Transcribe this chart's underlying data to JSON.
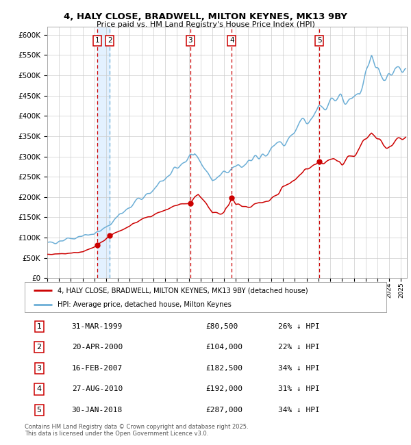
{
  "title": "4, HALY CLOSE, BRADWELL, MILTON KEYNES, MK13 9BY",
  "subtitle": "Price paid vs. HM Land Registry's House Price Index (HPI)",
  "hpi_label": "HPI: Average price, detached house, Milton Keynes",
  "property_label": "4, HALY CLOSE, BRADWELL, MILTON KEYNES, MK13 9BY (detached house)",
  "footer": "Contains HM Land Registry data © Crown copyright and database right 2025.\nThis data is licensed under the Open Government Licence v3.0.",
  "transactions": [
    {
      "num": 1,
      "date": "31-MAR-1999",
      "price": 80500,
      "pct": "26%",
      "dir": "↓"
    },
    {
      "num": 2,
      "date": "20-APR-2000",
      "price": 104000,
      "pct": "22%",
      "dir": "↓"
    },
    {
      "num": 3,
      "date": "16-FEB-2007",
      "price": 182500,
      "pct": "34%",
      "dir": "↓"
    },
    {
      "num": 4,
      "date": "27-AUG-2010",
      "price": 192000,
      "pct": "31%",
      "dir": "↓"
    },
    {
      "num": 5,
      "date": "30-JAN-2018",
      "price": 287000,
      "pct": "34%",
      "dir": "↓"
    }
  ],
  "transaction_dates_decimal": [
    1999.25,
    2000.31,
    2007.12,
    2010.65,
    2018.08
  ],
  "property_color": "#cc0000",
  "hpi_color": "#6baed6",
  "vline_red_color": "#cc0000",
  "vline_blue_color": "#6baed6",
  "shade_color": "#ddeeff",
  "ylim": [
    0,
    620000
  ],
  "xlim_start": 1995.0,
  "xlim_end": 2025.5,
  "background_color": "#ffffff",
  "grid_color": "#cccccc",
  "hpi_waypoints": [
    [
      1995.0,
      85000
    ],
    [
      1999.0,
      110000
    ],
    [
      2000.3,
      135000
    ],
    [
      2004.0,
      220000
    ],
    [
      2007.5,
      310000
    ],
    [
      2009.0,
      240000
    ],
    [
      2010.5,
      265000
    ],
    [
      2013.0,
      300000
    ],
    [
      2016.0,
      360000
    ],
    [
      2018.0,
      430000
    ],
    [
      2020.0,
      430000
    ],
    [
      2021.5,
      460000
    ],
    [
      2022.5,
      545000
    ],
    [
      2023.5,
      490000
    ],
    [
      2024.5,
      510000
    ],
    [
      2025.4,
      500000
    ]
  ],
  "prop_waypoints": [
    [
      1995.0,
      58000
    ],
    [
      1996.5,
      60000
    ],
    [
      1998.0,
      65000
    ],
    [
      1999.25,
      80500
    ],
    [
      2000.31,
      104000
    ],
    [
      2001.5,
      120000
    ],
    [
      2003.0,
      145000
    ],
    [
      2005.0,
      170000
    ],
    [
      2006.5,
      185000
    ],
    [
      2007.12,
      182500
    ],
    [
      2007.8,
      205000
    ],
    [
      2008.5,
      185000
    ],
    [
      2009.0,
      160000
    ],
    [
      2010.0,
      165000
    ],
    [
      2010.65,
      192000
    ],
    [
      2011.0,
      180000
    ],
    [
      2012.0,
      175000
    ],
    [
      2013.5,
      190000
    ],
    [
      2015.0,
      220000
    ],
    [
      2017.0,
      265000
    ],
    [
      2018.08,
      287000
    ],
    [
      2019.0,
      290000
    ],
    [
      2020.0,
      285000
    ],
    [
      2021.0,
      305000
    ],
    [
      2022.5,
      355000
    ],
    [
      2023.0,
      340000
    ],
    [
      2023.5,
      325000
    ],
    [
      2024.0,
      330000
    ],
    [
      2025.4,
      350000
    ]
  ]
}
